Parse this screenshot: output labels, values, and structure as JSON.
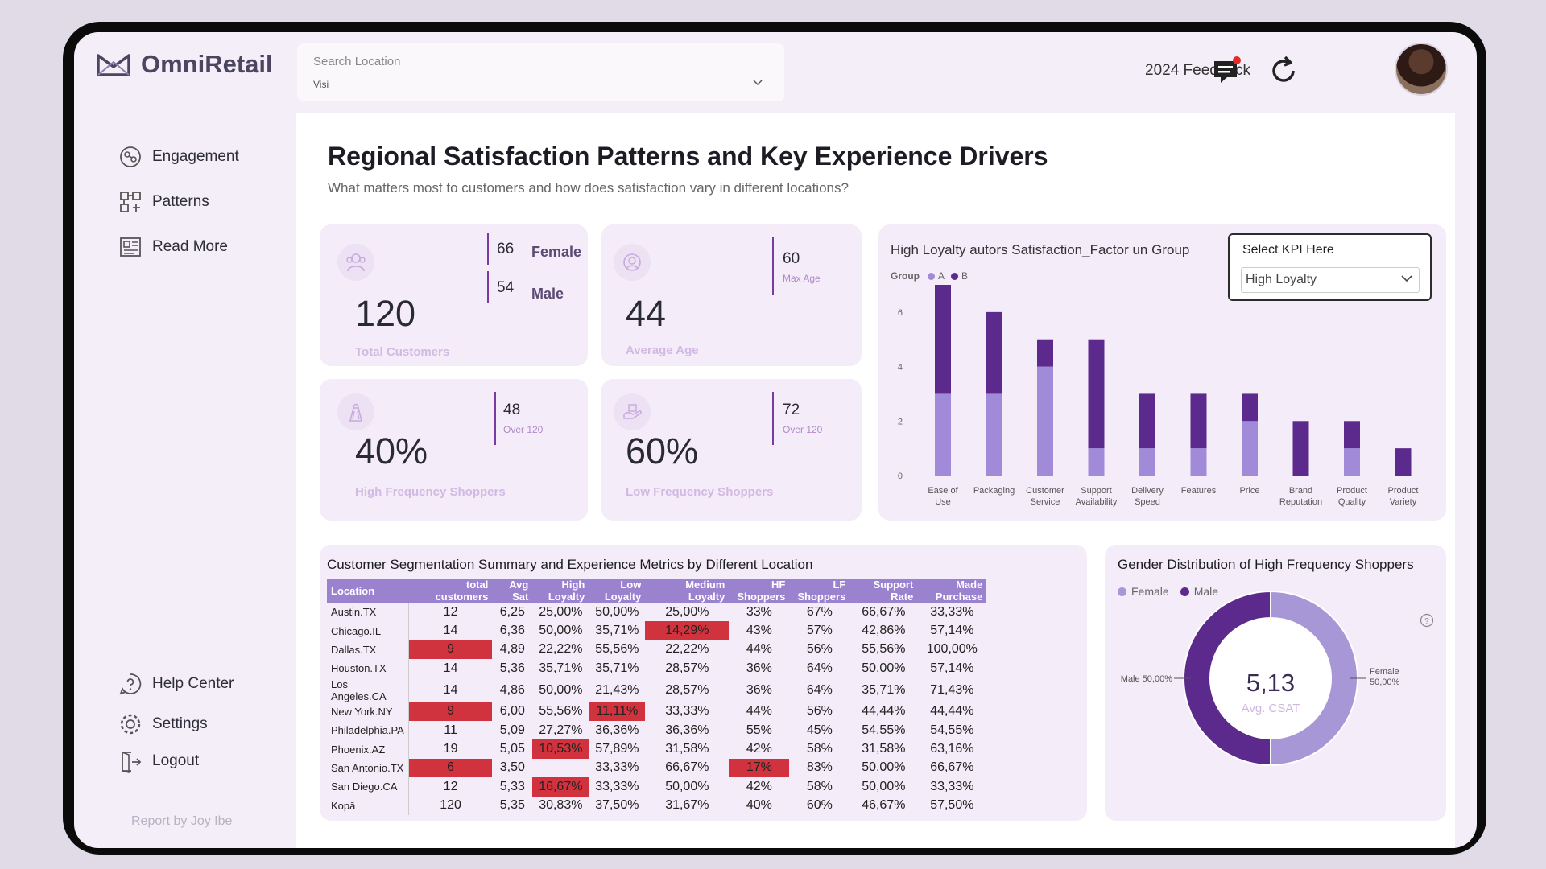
{
  "app": {
    "brand": "OmniRetail",
    "feedback_label": "2024 Feedback"
  },
  "search": {
    "label": "Search Location",
    "selected": "Visi"
  },
  "sidebar": {
    "items": [
      {
        "label": "Engagement"
      },
      {
        "label": "Patterns"
      },
      {
        "label": "Read More"
      }
    ],
    "bottom": [
      {
        "label": "Help Center"
      },
      {
        "label": "Settings"
      },
      {
        "label": "Logout"
      }
    ],
    "credit": "Report by Joy Ibe"
  },
  "header": {
    "title": "Regional Satisfaction Patterns and Key Experience Drivers",
    "subtitle": "What matters most to customers and how does satisfaction vary in different locations?"
  },
  "kpis": {
    "total": {
      "value": "120",
      "label": "Total Customers",
      "female_count": "66",
      "female_label": "Female",
      "male_count": "54",
      "male_label": "Male"
    },
    "age": {
      "value": "44",
      "label": "Average Age",
      "side_value": "60",
      "side_label": "Max Age"
    },
    "high_freq": {
      "value": "40%",
      "label": "High Frequency Shoppers",
      "side_value": "48",
      "side_label": "Over 120"
    },
    "low_freq": {
      "value": "60%",
      "label": "Low Frequency Shoppers",
      "side_value": "72",
      "side_label": "Over 120"
    }
  },
  "kpi_select": {
    "label": "Select KPI Here",
    "value": "High Loyalty"
  },
  "chart_data": [
    {
      "type": "bar",
      "stacked": true,
      "title": "High Loyalty autors Satisfaction_Factor un Group",
      "legend_title": "Group",
      "categories": [
        "Ease of Use",
        "Packaging",
        "Customer Service",
        "Support Availability",
        "Delivery Speed",
        "Features",
        "Price",
        "Brand Reputation",
        "Product Quality",
        "Product Variety"
      ],
      "series": [
        {
          "name": "A",
          "color": "#a18ad8",
          "values": [
            3,
            3,
            4,
            1,
            1,
            1,
            2,
            0,
            1,
            0
          ]
        },
        {
          "name": "B",
          "color": "#5c2a8c",
          "values": [
            4,
            3,
            1,
            4,
            2,
            2,
            1,
            2,
            1,
            1
          ]
        }
      ],
      "ylim": [
        0,
        7
      ],
      "yticks": [
        "0",
        "2",
        "4",
        "6"
      ]
    },
    {
      "type": "pie",
      "title": "Gender Distribution of High Frequency Shoppers",
      "legend": [
        "Female",
        "Male"
      ],
      "colors": [
        "#a897d6",
        "#5c2a8c"
      ],
      "values": [
        50,
        50
      ],
      "center_value": "5,13",
      "center_label": "Avg. CSAT",
      "labels": {
        "male": "Male 50,00%",
        "female_1": "Female",
        "female_2": "50,00%"
      }
    }
  ],
  "table": {
    "title": "Customer Segmentation Summary and Experience Metrics by Different Location",
    "columns": [
      "Location",
      "total customers",
      "Avg Sat",
      "High Loyalty",
      "Low Loyalty",
      "Medium Loyalty",
      "HF Shoppers",
      "LF Shoppers",
      "Support Rate",
      "Made Purchase"
    ],
    "rows": [
      [
        "Austin.TX",
        "12",
        "6,25",
        "25,00%",
        "50,00%",
        "25,00%",
        "33%",
        "67%",
        "66,67%",
        "33,33%"
      ],
      [
        "Chicago.IL",
        "14",
        "6,36",
        "50,00%",
        "35,71%",
        "14,29%",
        "43%",
        "57%",
        "42,86%",
        "57,14%"
      ],
      [
        "Dallas.TX",
        "9",
        "4,89",
        "22,22%",
        "55,56%",
        "22,22%",
        "44%",
        "56%",
        "55,56%",
        "100,00%"
      ],
      [
        "Houston.TX",
        "14",
        "5,36",
        "35,71%",
        "35,71%",
        "28,57%",
        "36%",
        "64%",
        "50,00%",
        "57,14%"
      ],
      [
        "Los Angeles.CA",
        "14",
        "4,86",
        "50,00%",
        "21,43%",
        "28,57%",
        "36%",
        "64%",
        "35,71%",
        "71,43%"
      ],
      [
        "New York.NY",
        "9",
        "6,00",
        "55,56%",
        "11,11%",
        "33,33%",
        "44%",
        "56%",
        "44,44%",
        "44,44%"
      ],
      [
        "Philadelphia.PA",
        "11",
        "5,09",
        "27,27%",
        "36,36%",
        "36,36%",
        "55%",
        "45%",
        "54,55%",
        "54,55%"
      ],
      [
        "Phoenix.AZ",
        "19",
        "5,05",
        "10,53%",
        "57,89%",
        "31,58%",
        "42%",
        "58%",
        "31,58%",
        "63,16%"
      ],
      [
        "San Antonio.TX",
        "6",
        "3,50",
        "",
        "33,33%",
        "66,67%",
        "17%",
        "83%",
        "50,00%",
        "66,67%"
      ],
      [
        "San Diego.CA",
        "12",
        "5,33",
        "16,67%",
        "33,33%",
        "50,00%",
        "42%",
        "58%",
        "50,00%",
        "33,33%"
      ],
      [
        "Kopā",
        "120",
        "5,35",
        "30,83%",
        "37,50%",
        "31,67%",
        "40%",
        "60%",
        "46,67%",
        "57,50%"
      ]
    ],
    "highlights": [
      [
        1,
        5
      ],
      [
        2,
        1
      ],
      [
        5,
        1
      ],
      [
        5,
        4
      ],
      [
        7,
        3
      ],
      [
        8,
        1
      ],
      [
        8,
        6
      ],
      [
        9,
        3
      ]
    ]
  }
}
